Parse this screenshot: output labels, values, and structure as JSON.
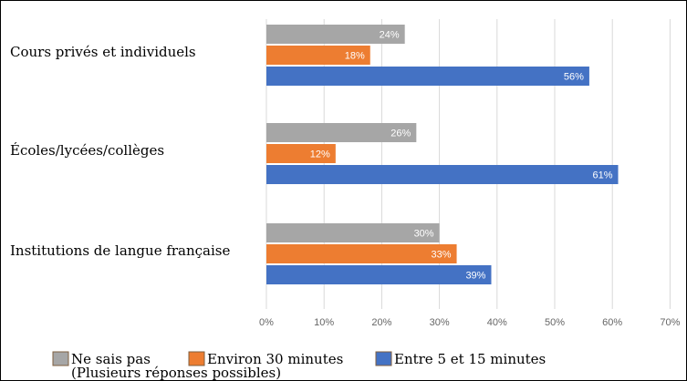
{
  "chart_data": {
    "type": "bar",
    "orientation": "horizontal",
    "categories": [
      "Cours privés et individuels",
      "Écoles/lycées/collèges",
      "Institutions de langue française"
    ],
    "series": [
      {
        "name": "Ne sais pas",
        "values": [
          24,
          26,
          30
        ],
        "labels": [
          "24%",
          "26%",
          "30%"
        ],
        "color": "#a6a6a6"
      },
      {
        "name": "Environ 30 minutes",
        "values": [
          18,
          12,
          33
        ],
        "labels": [
          "18%",
          "12%",
          "33%"
        ],
        "color": "#ed7d31"
      },
      {
        "name": "Entre 5 et 15 minutes",
        "values": [
          56,
          61,
          39
        ],
        "labels": [
          "56%",
          "61%",
          "39%"
        ],
        "color": "#4472c4"
      }
    ],
    "xlim": [
      0,
      70
    ],
    "xticks": [
      "0%",
      "10%",
      "20%",
      "30%",
      "40%",
      "50%",
      "60%",
      "70%"
    ],
    "grid": true,
    "legend_position": "bottom",
    "note": "(Plusieurs réponses possibles)",
    "legend_border_color": "#7f5f3f"
  }
}
